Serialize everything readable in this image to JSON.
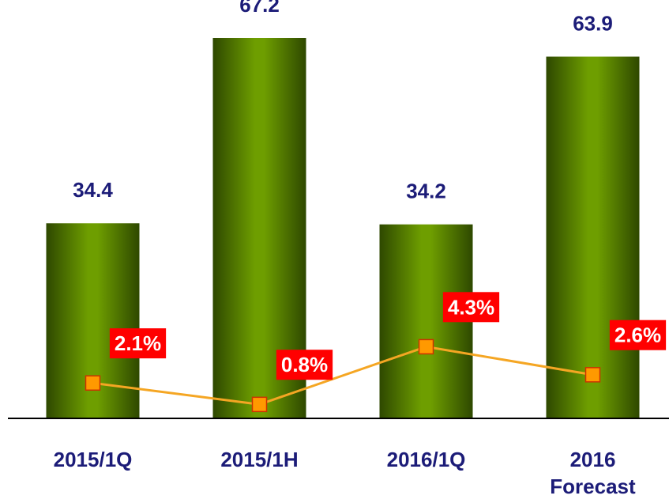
{
  "chart_data": {
    "type": "bar",
    "categories": [
      "2015/1Q",
      "2015/1H",
      "2016/1Q",
      "2016 Forecast"
    ],
    "ylim": [
      0,
      70
    ],
    "y2lim": [
      0,
      24
    ],
    "series": [
      {
        "type": "bar",
        "color": "#5f8f00",
        "values": [
          34.4,
          67.2,
          34.2,
          63.9
        ]
      },
      {
        "type": "line",
        "axis": "y2",
        "color": "#f5a623",
        "values": [
          2.1,
          0.8,
          4.3,
          2.6
        ],
        "value_labels": [
          "2.1%",
          "0.8%",
          "4.3%",
          "2.6%"
        ]
      }
    ]
  }
}
